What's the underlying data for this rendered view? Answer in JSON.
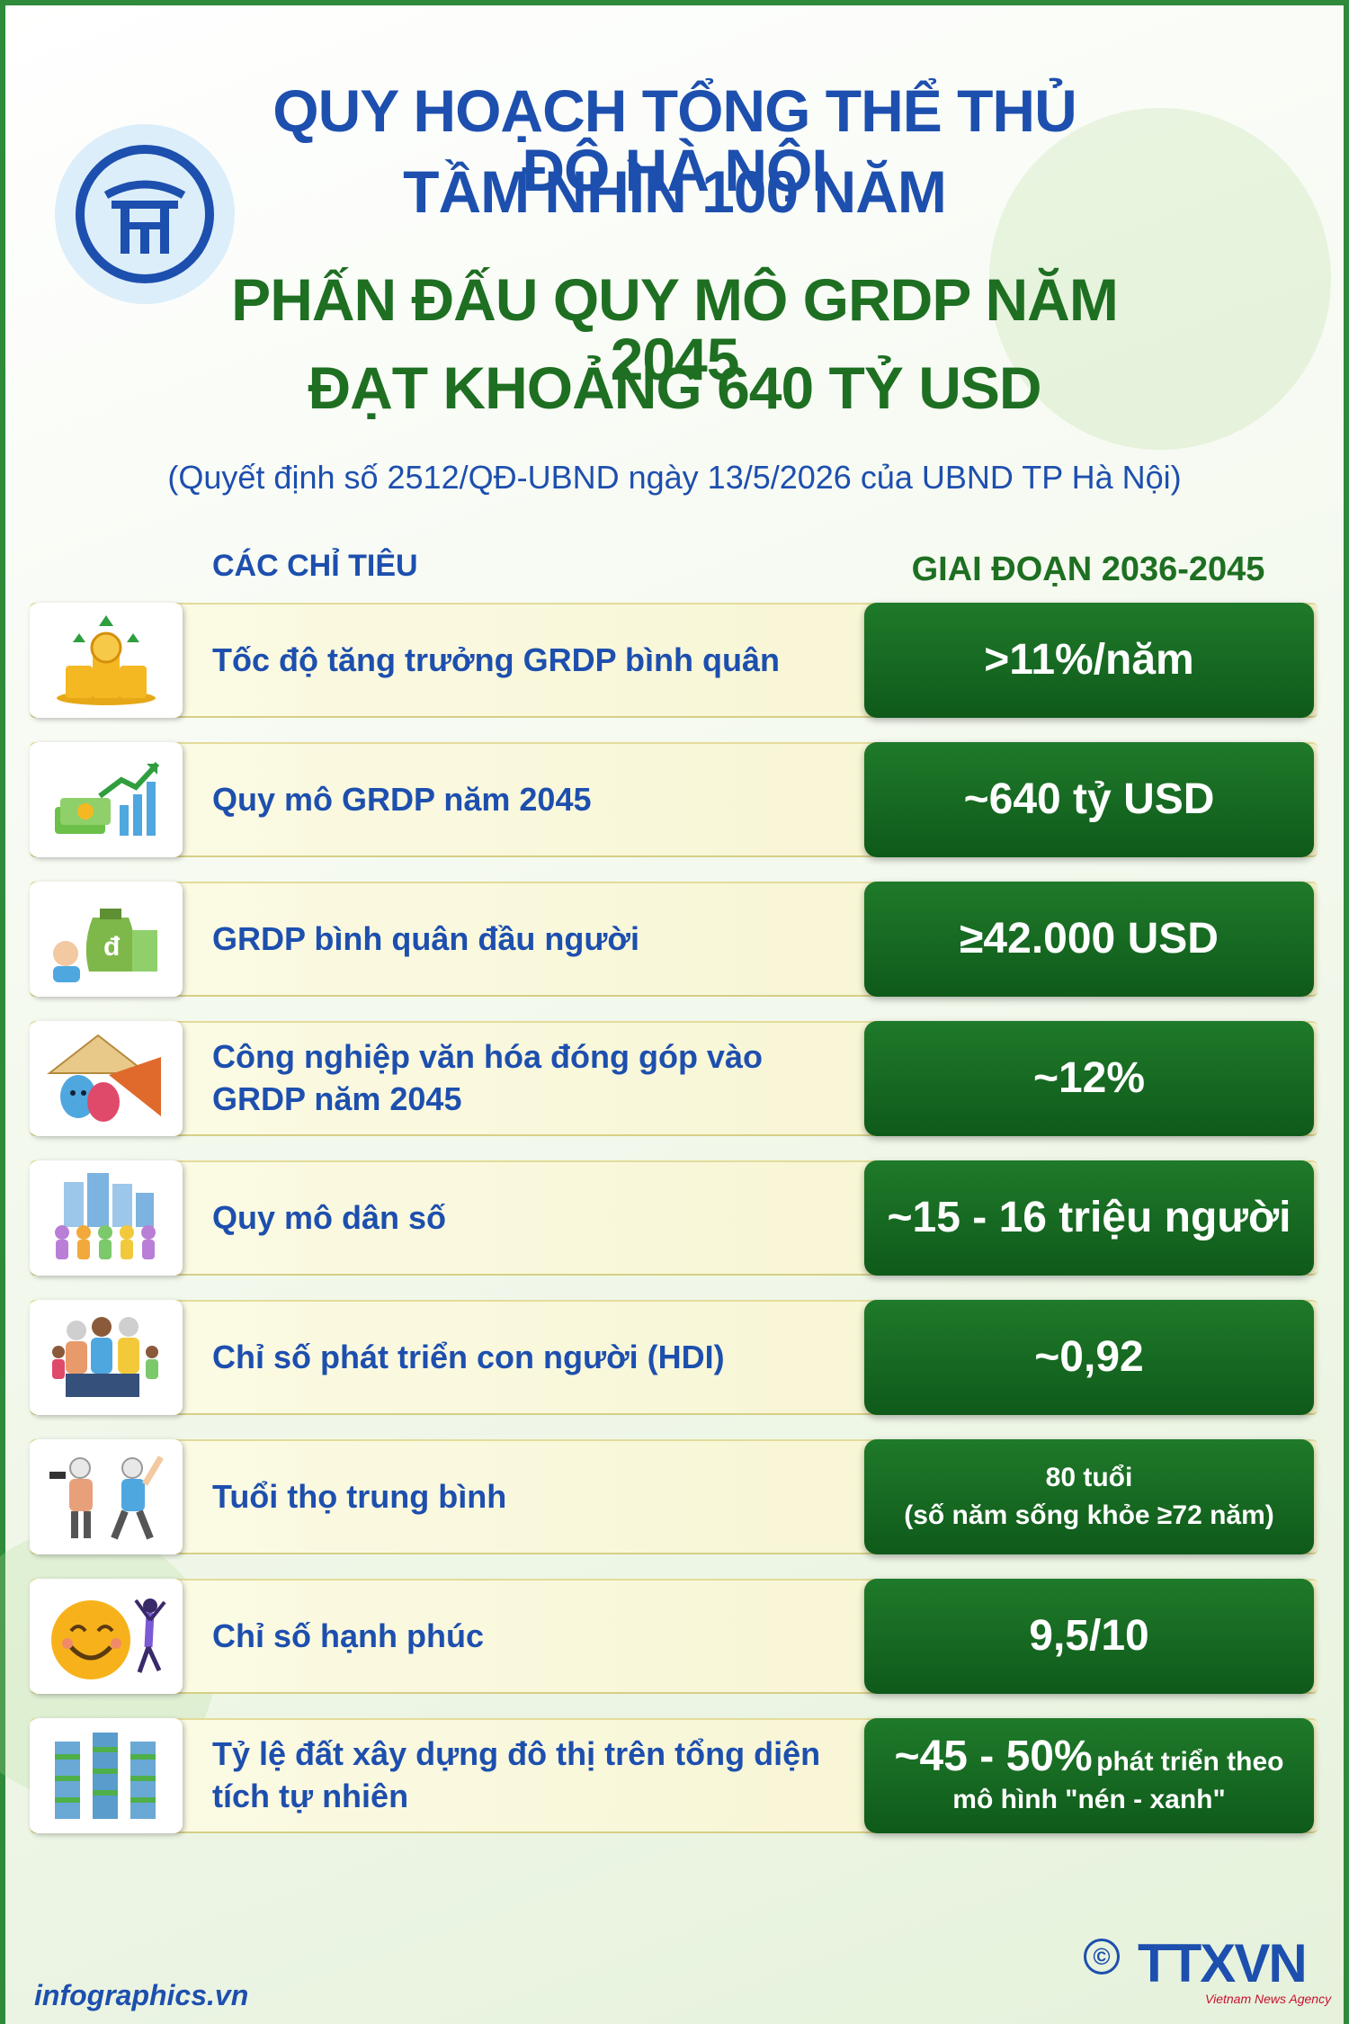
{
  "header": {
    "title_line1": "QUY HOẠCH TỔNG THỂ THỦ ĐÔ HÀ NỘI",
    "title_line2": "TẦM NHÌN 100 NĂM",
    "title_line3": "PHẤN ĐẤU  QUY MÔ GRDP NĂM 2045",
    "title_line4": "ĐẠT KHOẢNG 640 TỶ USD",
    "subtitle": "(Quyết định số 2512/QĐ-UBND ngày 13/5/2026 của UBND TP Hà Nội)",
    "logo_icon": "hanoi-emblem-icon"
  },
  "table": {
    "col_left": "CÁC CHỈ TIÊU",
    "col_right": "GIAI ĐOẠN 2036-2045",
    "rows": [
      {
        "icon": "coins-growth-icon",
        "label": "Tốc độ tăng trưởng GRDP bình quân",
        "value_main": ">11%/năm",
        "value_extra": ""
      },
      {
        "icon": "money-chart-icon",
        "label": "Quy mô GRDP năm 2045",
        "value_main": "~640 tỷ USD",
        "value_extra": ""
      },
      {
        "icon": "money-bag-icon",
        "label": "GRDP bình quân đầu người",
        "value_main": "≥42.000 USD",
        "value_extra": ""
      },
      {
        "icon": "culture-masks-icon",
        "label": "Công nghiệp văn hóa đóng góp vào GRDP năm 2045",
        "value_main": "~12%",
        "value_extra": ""
      },
      {
        "icon": "population-icon",
        "label": "Quy mô dân số",
        "value_main": "~15 - 16 triệu người",
        "value_extra": ""
      },
      {
        "icon": "family-icon",
        "label": "Chỉ số phát triển con người (HDI)",
        "value_main": "~0,92",
        "value_extra": ""
      },
      {
        "icon": "elderly-exercise-icon",
        "label": "Tuổi thọ trung bình",
        "value_main": "80 tuổi",
        "value_extra": "(số năm sống khỏe ≥72 năm)"
      },
      {
        "icon": "happy-face-icon",
        "label": "Chỉ số hạnh phúc",
        "value_main": "9,5/10",
        "value_extra": ""
      },
      {
        "icon": "green-buildings-icon",
        "label": "Tỷ lệ đất xây dựng đô thị trên tổng diện tích tự nhiên",
        "value_main": "~45 - 50%",
        "value_extra": "phát triển theo",
        "value_extra2": "mô hình \"nén - xanh\""
      }
    ]
  },
  "footer": {
    "site": "infographics.vn",
    "copyright_symbol": "©",
    "agency": "TTXVN",
    "agency_sub": "Vietnam News Agency"
  },
  "colors": {
    "title_blue": "#1d4fae",
    "title_green": "#1e6f22",
    "value_green": "#1a6f25"
  }
}
